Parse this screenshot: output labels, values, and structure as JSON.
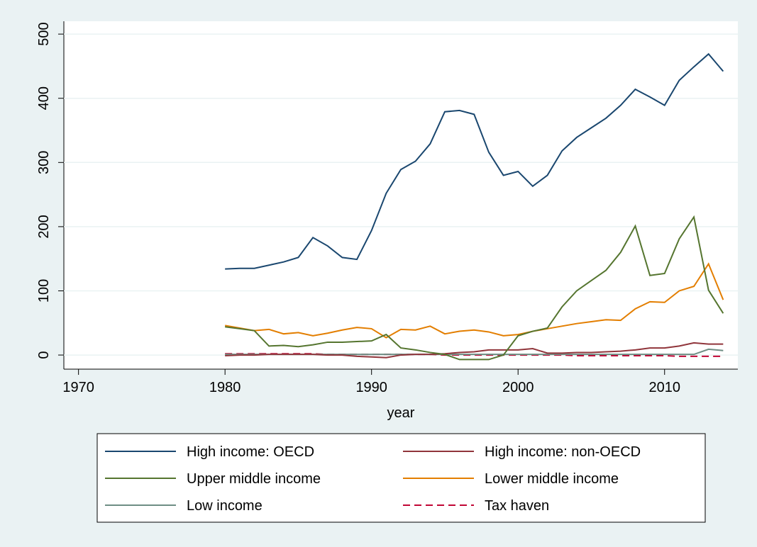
{
  "chart_data": {
    "type": "line",
    "x_label": "year",
    "x": [
      1980,
      1981,
      1982,
      1983,
      1984,
      1985,
      1986,
      1987,
      1988,
      1989,
      1990,
      1991,
      1992,
      1993,
      1994,
      1995,
      1996,
      1997,
      1998,
      1999,
      2000,
      2001,
      2002,
      2003,
      2004,
      2005,
      2006,
      2007,
      2008,
      2009,
      2010,
      2011,
      2012,
      2013,
      2014
    ],
    "series": [
      {
        "name": "High income: OECD",
        "color": "#1a476f",
        "dash": false,
        "values": [
          134,
          135,
          135,
          140,
          145,
          152,
          183,
          170,
          152,
          149,
          194,
          252,
          289,
          302,
          329,
          379,
          381,
          375,
          316,
          280,
          286,
          263,
          280,
          318,
          339,
          354,
          369,
          389,
          414,
          402,
          389,
          428,
          449,
          469,
          442
        ]
      },
      {
        "name": "High income: non-OECD",
        "color": "#90353b",
        "dash": false,
        "values": [
          -1,
          0,
          0,
          1,
          1,
          1,
          1,
          0,
          0,
          -2,
          -3,
          -4,
          0,
          1,
          1,
          2,
          4,
          5,
          8,
          8,
          8,
          10,
          3,
          3,
          4,
          4,
          5,
          6,
          8,
          11,
          11,
          14,
          19,
          17,
          17
        ]
      },
      {
        "name": "Upper middle income",
        "color": "#55752f",
        "dash": false,
        "values": [
          44,
          41,
          38,
          14,
          15,
          13,
          16,
          20,
          20,
          21,
          22,
          32,
          11,
          8,
          4,
          1,
          -7,
          -7,
          -7,
          0,
          30,
          37,
          42,
          75,
          100,
          116,
          132,
          160,
          201,
          124,
          127,
          181,
          215,
          101,
          65
        ]
      },
      {
        "name": "Lower middle income",
        "color": "#e37e00",
        "dash": false,
        "values": [
          46,
          42,
          38,
          40,
          33,
          35,
          30,
          34,
          39,
          43,
          41,
          27,
          40,
          39,
          45,
          33,
          37,
          39,
          36,
          30,
          32,
          37,
          41,
          45,
          49,
          52,
          55,
          54,
          72,
          83,
          82,
          100,
          107,
          142,
          86
        ]
      },
      {
        "name": "Low income",
        "color": "#6e8e84",
        "dash": false,
        "values": [
          1,
          1,
          1,
          1,
          1,
          1,
          1,
          1,
          1,
          1,
          1,
          1,
          1,
          1,
          1,
          1,
          1,
          1,
          1,
          1,
          1,
          1,
          1,
          1,
          1,
          1,
          1,
          1,
          1,
          1,
          1,
          1,
          1,
          9,
          7
        ]
      },
      {
        "name": "Tax haven",
        "color": "#c10534",
        "dash": true,
        "values": [
          2,
          2,
          2,
          2,
          2,
          2,
          2,
          1,
          1,
          1,
          1,
          1,
          1,
          1,
          1,
          0,
          0,
          0,
          0,
          0,
          0,
          0,
          0,
          0,
          -1,
          -1,
          -1,
          -1,
          -1,
          -1,
          -1,
          -2,
          -2,
          -2,
          -2
        ]
      }
    ],
    "xlim": [
      1969,
      2015
    ],
    "xticks": [
      1970,
      1980,
      1990,
      2000,
      2010
    ],
    "ylim": [
      -22,
      520
    ],
    "yticks": [
      0,
      100,
      200,
      300,
      400,
      500
    ],
    "grid": true
  }
}
